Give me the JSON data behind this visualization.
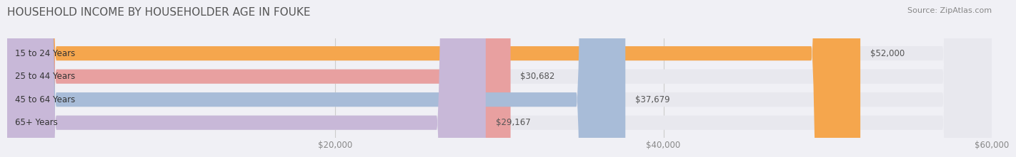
{
  "title": "HOUSEHOLD INCOME BY HOUSEHOLDER AGE IN FOUKE",
  "source": "Source: ZipAtlas.com",
  "categories": [
    "15 to 24 Years",
    "25 to 44 Years",
    "45 to 64 Years",
    "65+ Years"
  ],
  "values": [
    52000,
    30682,
    37679,
    29167
  ],
  "bar_colors": [
    "#f5a64d",
    "#e8a0a0",
    "#a8bcd8",
    "#c8b8d8"
  ],
  "bar_labels": [
    "$52,000",
    "$30,682",
    "$37,679",
    "$29,167"
  ],
  "xmin": 0,
  "xmax": 60000,
  "xticks": [
    20000,
    40000,
    60000
  ],
  "xticklabels": [
    "$20,000",
    "$40,000",
    "$60,000"
  ],
  "background_color": "#f0f0f5",
  "bar_background": "#e8e8ee",
  "title_fontsize": 11,
  "label_fontsize": 8.5,
  "tick_fontsize": 8.5,
  "source_fontsize": 8
}
